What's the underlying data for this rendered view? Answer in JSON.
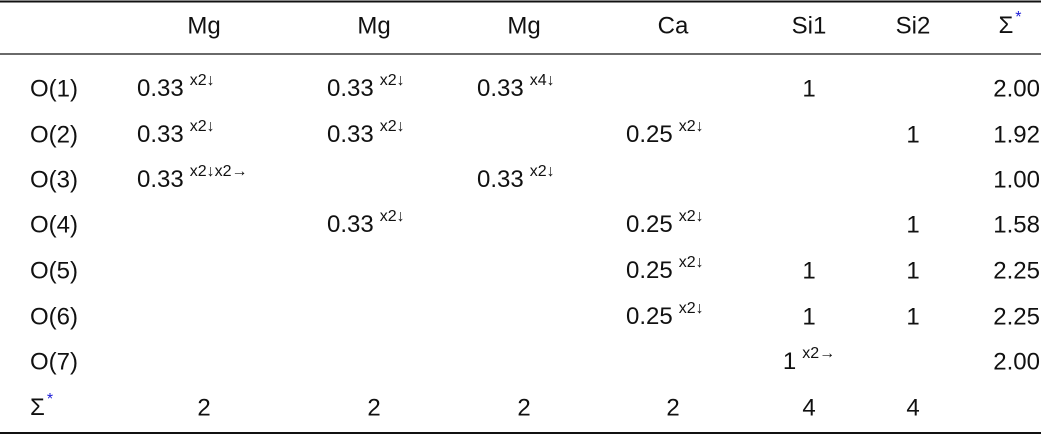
{
  "table": {
    "header": [
      null,
      "Mg",
      "Mg",
      "Mg",
      "Ca",
      "Si1",
      "Si2",
      {
        "value": "Σ",
        "sup": "*"
      }
    ],
    "rows": [
      [
        "O(1)",
        {
          "value": "0.33",
          "sup": "x2↓"
        },
        {
          "value": "0.33",
          "sup": "x2↓"
        },
        {
          "value": "0.33",
          "sup": "x4↓"
        },
        null,
        "1",
        null,
        "2.00"
      ],
      [
        "O(2)",
        {
          "value": "0.33",
          "sup": "x2↓"
        },
        {
          "value": "0.33",
          "sup": "x2↓"
        },
        null,
        {
          "value": "0.25",
          "sup": "x2↓"
        },
        null,
        "1",
        "1.92"
      ],
      [
        "O(3)",
        {
          "value": "0.33",
          "sup": "x2↓x2→"
        },
        null,
        {
          "value": "0.33",
          "sup": "x2↓"
        },
        null,
        null,
        null,
        "1.00"
      ],
      [
        "O(4)",
        null,
        {
          "value": "0.33",
          "sup": "x2↓"
        },
        null,
        {
          "value": "0.25",
          "sup": "x2↓"
        },
        null,
        "1",
        "1.58"
      ],
      [
        "O(5)",
        null,
        null,
        null,
        {
          "value": "0.25",
          "sup": "x2↓"
        },
        "1",
        "1",
        "2.25"
      ],
      [
        "O(6)",
        null,
        null,
        null,
        {
          "value": "0.25",
          "sup": "x2↓"
        },
        "1",
        "1",
        "2.25"
      ],
      [
        "O(7)",
        null,
        null,
        null,
        null,
        {
          "value": "1",
          "sup": "x2→"
        },
        null,
        "2.00"
      ],
      [
        {
          "value": "Σ",
          "sup": "*"
        },
        "2",
        "2",
        "2",
        "2",
        "4",
        "4",
        null
      ]
    ]
  }
}
